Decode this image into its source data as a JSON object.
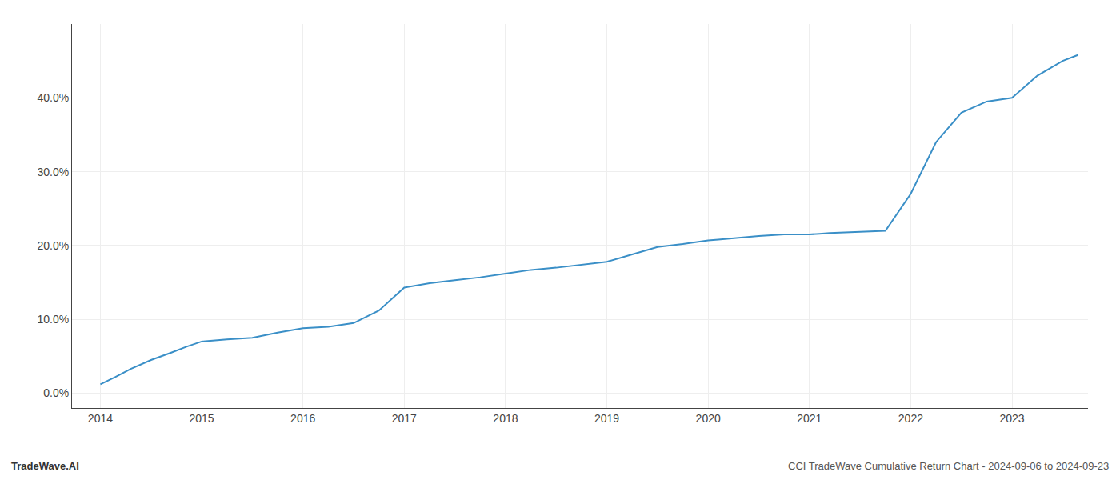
{
  "chart_data": {
    "type": "line",
    "x": [
      2014.0,
      2014.15,
      2014.3,
      2014.5,
      2014.7,
      2014.85,
      2015.0,
      2015.25,
      2015.5,
      2015.75,
      2016.0,
      2016.25,
      2016.5,
      2016.75,
      2017.0,
      2017.25,
      2017.5,
      2017.75,
      2018.0,
      2018.25,
      2018.5,
      2018.75,
      2019.0,
      2019.25,
      2019.5,
      2019.75,
      2020.0,
      2020.1,
      2020.25,
      2020.5,
      2020.75,
      2021.0,
      2021.1,
      2021.2,
      2021.4,
      2021.6,
      2021.75,
      2022.0,
      2022.25,
      2022.5,
      2022.75,
      2023.0,
      2023.25,
      2023.5,
      2023.65
    ],
    "values": [
      0.012,
      0.022,
      0.033,
      0.045,
      0.055,
      0.063,
      0.07,
      0.073,
      0.075,
      0.082,
      0.088,
      0.09,
      0.095,
      0.112,
      0.143,
      0.149,
      0.153,
      0.157,
      0.162,
      0.167,
      0.17,
      0.174,
      0.178,
      0.188,
      0.198,
      0.202,
      0.207,
      0.208,
      0.21,
      0.213,
      0.215,
      0.215,
      0.216,
      0.217,
      0.218,
      0.219,
      0.22,
      0.27,
      0.34,
      0.38,
      0.395,
      0.4,
      0.43,
      0.45,
      0.458
    ],
    "color": "#3a8fc7",
    "xlim": [
      2013.72,
      2023.75
    ],
    "xticks": [
      2014,
      2015,
      2016,
      2017,
      2018,
      2019,
      2020,
      2021,
      2022,
      2023
    ],
    "ylim": [
      -0.02,
      0.5
    ],
    "yticks": [
      {
        "value": 0.0,
        "label": "0.0%"
      },
      {
        "value": 0.1,
        "label": "10.0%"
      },
      {
        "value": 0.2,
        "label": "20.0%"
      },
      {
        "value": 0.3,
        "label": "30.0%"
      },
      {
        "value": 0.4,
        "label": "40.0%"
      }
    ],
    "grid": true,
    "annotations": [
      "TradeWave.AI",
      "CCI TradeWave Cumulative Return Chart - 2024-09-06 to 2024-09-23"
    ]
  }
}
